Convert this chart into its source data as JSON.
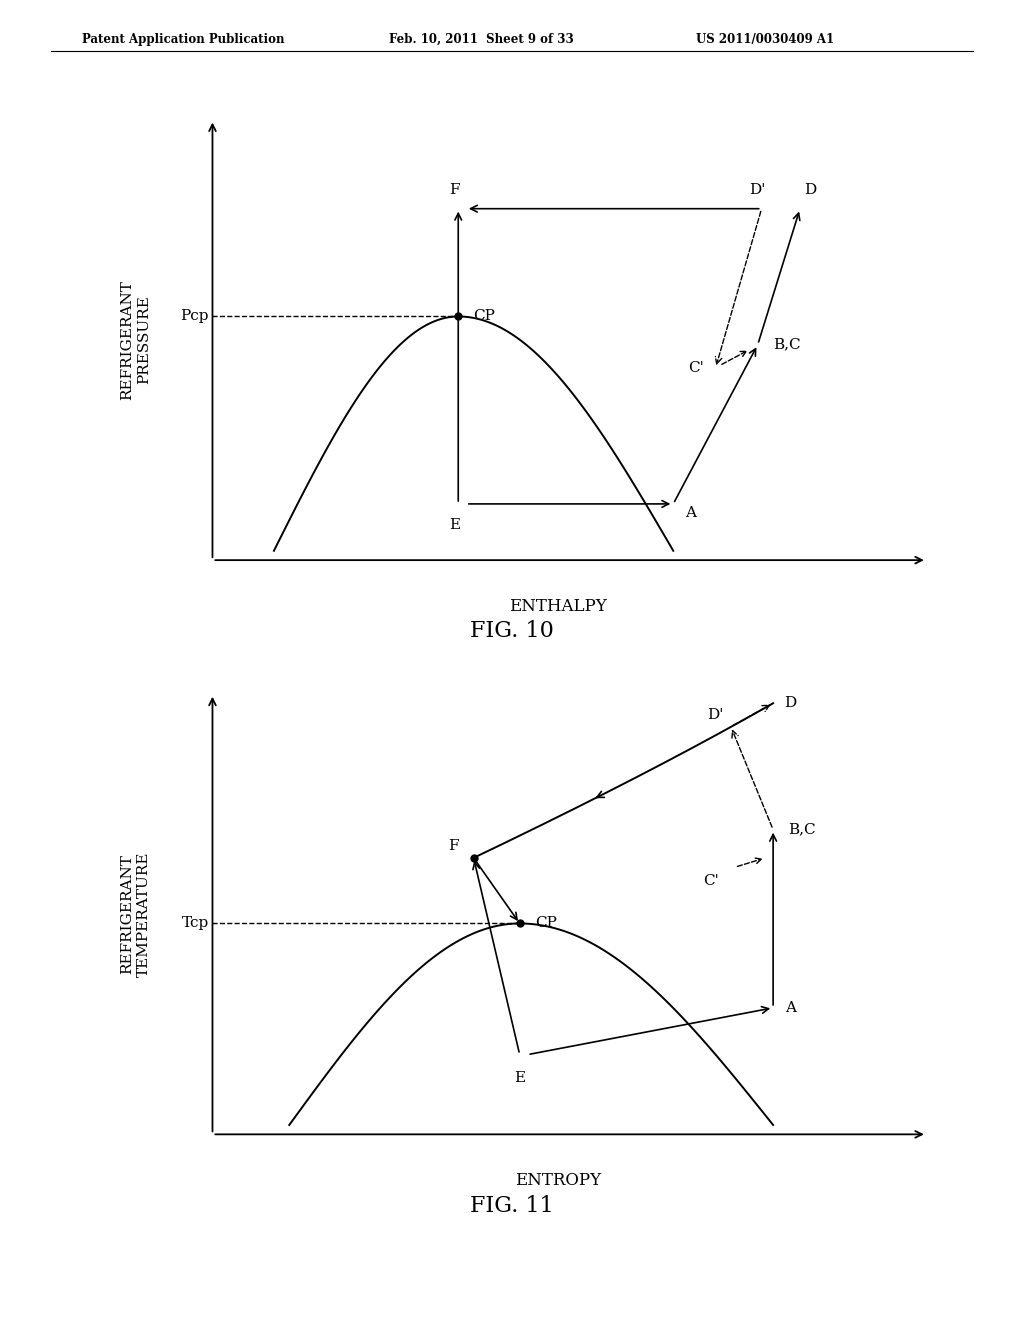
{
  "header_left": "Patent Application Publication",
  "header_mid": "Feb. 10, 2011  Sheet 9 of 33",
  "header_right": "US 2011/0030409 A1",
  "fig10_title": "FIG. 10",
  "fig11_title": "FIG. 11",
  "fig10_xlabel": "ENTHALPY",
  "fig10_ylabel": "REFRIGERANT\nPRESSURE",
  "fig11_xlabel": "ENTROPY",
  "fig11_ylabel": "REFRIGERANT\nTEMPERATURE",
  "bg_color": "#ffffff",
  "line_color": "#000000"
}
